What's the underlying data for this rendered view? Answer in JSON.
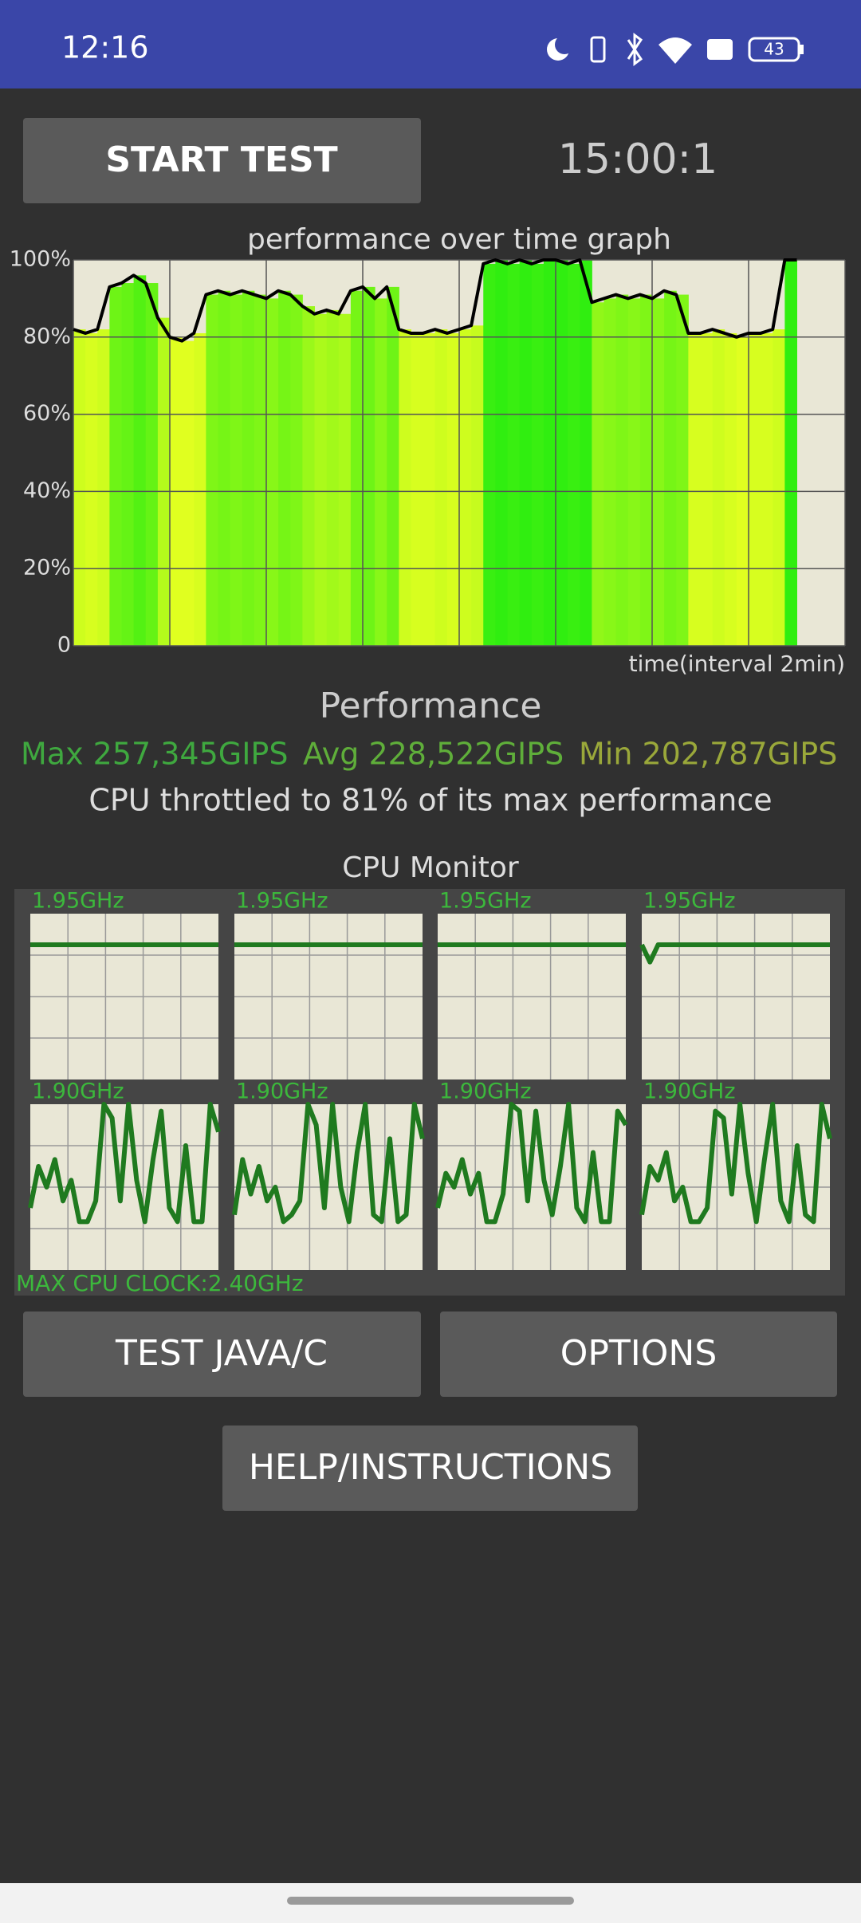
{
  "status_bar": {
    "time": "12:16",
    "battery": "43"
  },
  "start_button": "START TEST",
  "timer": "15:00:1",
  "chart_data": {
    "type": "area",
    "title": "performance over time graph",
    "xlabel": "time(interval 2min)",
    "x": [
      0,
      0.25,
      0.5,
      0.75,
      1,
      1.25,
      1.5,
      1.75,
      2,
      2.25,
      2.5,
      2.75,
      3,
      3.25,
      3.5,
      3.75,
      4,
      4.25,
      4.5,
      4.75,
      5,
      5.25,
      5.5,
      5.75,
      6,
      6.25,
      6.5,
      6.75,
      7,
      7.25,
      7.5,
      7.75,
      8,
      8.25,
      8.5,
      8.75,
      9,
      9.25,
      9.5,
      9.75,
      10,
      10.25,
      10.5,
      10.75,
      11,
      11.25,
      11.5,
      11.75,
      12,
      12.25,
      12.5,
      12.75,
      13,
      13.25,
      13.5,
      13.75,
      14,
      14.25,
      14.5,
      14.75,
      15
    ],
    "values": [
      82,
      81,
      82,
      93,
      94,
      96,
      94,
      85,
      80,
      79,
      81,
      91,
      92,
      91,
      92,
      91,
      90,
      92,
      91,
      88,
      86,
      87,
      86,
      92,
      93,
      90,
      93,
      82,
      81,
      81,
      82,
      81,
      82,
      83,
      99,
      100,
      99,
      100,
      99,
      100,
      100,
      99,
      100,
      89,
      90,
      91,
      90,
      91,
      90,
      92,
      91,
      81,
      81,
      82,
      81,
      80,
      81,
      81,
      82,
      100,
      100
    ],
    "xlim": [
      0,
      16
    ],
    "xticks": [
      0,
      2,
      4,
      6,
      8,
      10,
      12,
      14,
      16
    ],
    "ylim": [
      0,
      100
    ],
    "yticks": [
      0,
      {
        "value": 20,
        "label": "20%"
      },
      {
        "value": 40,
        "label": "40%"
      },
      {
        "value": 60,
        "label": "60%"
      },
      {
        "value": 80,
        "label": "80%"
      },
      {
        "value": 100,
        "label": "100%"
      }
    ],
    "grid": true,
    "line_color": "#000000"
  },
  "performance": {
    "title": "Performance",
    "max": "Max 257,345GIPS",
    "avg": "Avg 228,522GIPS",
    "min": "Min 202,787GIPS",
    "throttle": "CPU throttled to 81% of its max performance"
  },
  "cpu_monitor": {
    "title": "CPU Monitor",
    "ylim": [
      0,
      2.4
    ],
    "max_clock": "MAX CPU CLOCK:2.40GHz",
    "cores": [
      {
        "label": "1.95GHz",
        "values": [
          1.95,
          1.95,
          1.95,
          1.95,
          1.95,
          1.95,
          1.95,
          1.95,
          1.95,
          1.95,
          1.95,
          1.95,
          1.95,
          1.95,
          1.95,
          1.95,
          1.95,
          1.95,
          1.95,
          1.95,
          1.95,
          1.95,
          1.95,
          1.95
        ]
      },
      {
        "label": "1.95GHz",
        "values": [
          1.95,
          1.95,
          1.95,
          1.95,
          1.95,
          1.95,
          1.95,
          1.95,
          1.95,
          1.95,
          1.95,
          1.95,
          1.95,
          1.95,
          1.95,
          1.95,
          1.95,
          1.95,
          1.95,
          1.95,
          1.95,
          1.95,
          1.95,
          1.95
        ]
      },
      {
        "label": "1.95GHz",
        "values": [
          1.95,
          1.95,
          1.95,
          1.95,
          1.95,
          1.95,
          1.95,
          1.95,
          1.95,
          1.95,
          1.95,
          1.95,
          1.95,
          1.95,
          1.95,
          1.95,
          1.95,
          1.95,
          1.95,
          1.95,
          1.95,
          1.95,
          1.95,
          1.95
        ]
      },
      {
        "label": "1.95GHz",
        "values": [
          1.95,
          1.7,
          1.95,
          1.95,
          1.95,
          1.95,
          1.95,
          1.95,
          1.95,
          1.95,
          1.95,
          1.95,
          1.95,
          1.95,
          1.95,
          1.95,
          1.95,
          1.95,
          1.95,
          1.95,
          1.95,
          1.95,
          1.95,
          1.95
        ]
      },
      {
        "label": "1.90GHz",
        "values": [
          0.9,
          1.5,
          1.2,
          1.6,
          1.0,
          1.3,
          0.7,
          0.7,
          1.0,
          2.4,
          2.2,
          1.0,
          2.4,
          1.3,
          0.7,
          1.6,
          2.3,
          0.9,
          0.7,
          1.8,
          0.7,
          0.7,
          2.4,
          2.0
        ]
      },
      {
        "label": "1.90GHz",
        "values": [
          0.8,
          1.6,
          1.1,
          1.5,
          1.0,
          1.2,
          0.7,
          0.8,
          1.0,
          2.4,
          2.1,
          0.9,
          2.4,
          1.2,
          0.7,
          1.7,
          2.4,
          0.8,
          0.7,
          1.9,
          0.7,
          0.8,
          2.4,
          1.9
        ]
      },
      {
        "label": "1.90GHz",
        "values": [
          0.9,
          1.4,
          1.2,
          1.6,
          1.1,
          1.4,
          0.7,
          0.7,
          1.1,
          2.4,
          2.3,
          1.0,
          2.3,
          1.3,
          0.8,
          1.5,
          2.4,
          0.9,
          0.7,
          1.7,
          0.7,
          0.7,
          2.3,
          2.1
        ]
      },
      {
        "label": "1.90GHz",
        "values": [
          0.8,
          1.5,
          1.3,
          1.7,
          1.0,
          1.2,
          0.7,
          0.7,
          0.9,
          2.3,
          2.2,
          1.1,
          2.4,
          1.4,
          0.7,
          1.6,
          2.4,
          1.0,
          0.7,
          1.8,
          0.8,
          0.7,
          2.4,
          1.9
        ]
      }
    ]
  },
  "buttons": [
    "TEST JAVA/C",
    "OPTIONS",
    "HELP/INSTRUCTIONS"
  ]
}
